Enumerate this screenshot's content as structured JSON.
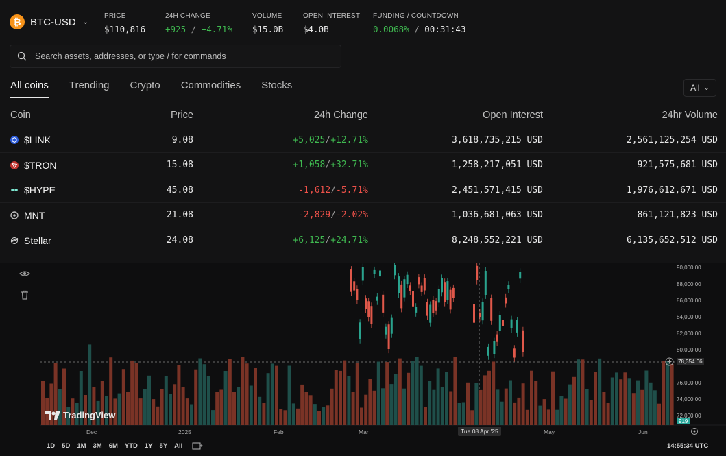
{
  "header": {
    "ticker": "BTC-USD",
    "stats": [
      {
        "label": "PRICE",
        "value": "$110,816"
      },
      {
        "label": "24H CHANGE",
        "value_abs": "+925",
        "value_pct": "+4.71%"
      },
      {
        "label": "VOLUME",
        "value": "$15.0B"
      },
      {
        "label": "OPEN INTEREST",
        "value": "$4.0B"
      },
      {
        "label": "FUNDING / COUNTDOWN",
        "value_funding": "0.0068%",
        "value_countdown": "00:31:43"
      }
    ]
  },
  "search": {
    "placeholder": "Search assets, addresses, or type / for commands"
  },
  "tabs": [
    {
      "label": "All coins",
      "active": true
    },
    {
      "label": "Trending"
    },
    {
      "label": "Crypto"
    },
    {
      "label": "Commodities"
    },
    {
      "label": "Stocks"
    }
  ],
  "filter": {
    "label": "All"
  },
  "table": {
    "columns": [
      "Coin",
      "Price",
      "24h Change",
      "Open Interest",
      "24hr Volume"
    ],
    "rows": [
      {
        "coin": "$LINK",
        "icon": "link-icon",
        "price": "9.08",
        "chg_abs": "+5,025",
        "chg_pct": "+12.71%",
        "dir": "up",
        "oi": "3,618,735,215 USD",
        "vol": "2,561,125,254 USD"
      },
      {
        "coin": "$TRON",
        "icon": "tron-icon",
        "price": "15.08",
        "chg_abs": "+1,058",
        "chg_pct": "+32.71%",
        "dir": "up",
        "oi": "1,258,217,051 USD",
        "vol": "921,575,681 USD"
      },
      {
        "coin": "$HYPE",
        "icon": "hype-icon",
        "price": "45.08",
        "chg_abs": "-1,612",
        "chg_pct": "-5.71%",
        "dir": "down",
        "oi": "2,451,571,415 USD",
        "vol": "1,976,612,671 USD"
      },
      {
        "coin": "MNT",
        "icon": "mnt-icon",
        "price": "21.08",
        "chg_abs": "-2,829",
        "chg_pct": "-2.02%",
        "dir": "down",
        "oi": "1,036,681,063 USD",
        "vol": "861,121,823 USD"
      },
      {
        "coin": "Stellar",
        "icon": "stellar-icon",
        "price": "24.08",
        "chg_abs": "+6,125",
        "chg_pct": "+24.71%",
        "dir": "up",
        "oi": "8,248,552,221 USD",
        "vol": "6,135,652,512 USD"
      }
    ]
  },
  "chart": {
    "price_labels": [
      "90,000.00",
      "88,000.00",
      "86,000.00",
      "84,000.00",
      "82,000.00",
      "80,000.00",
      "76,000.00",
      "74,000.00",
      "72,000.00"
    ],
    "current_price": "78,354.06",
    "volume_tag": "919",
    "months": [
      "Dec",
      "2025",
      "Feb",
      "Mar",
      "May",
      "Jun"
    ],
    "crosshair_date": "Tue 08 Apr '25",
    "timeframes": [
      "1D",
      "5D",
      "1M",
      "3M",
      "6M",
      "YTD",
      "1Y",
      "5Y",
      "All"
    ],
    "utc_time": "14:55:34 UTC",
    "logo_text": "TradingView"
  }
}
